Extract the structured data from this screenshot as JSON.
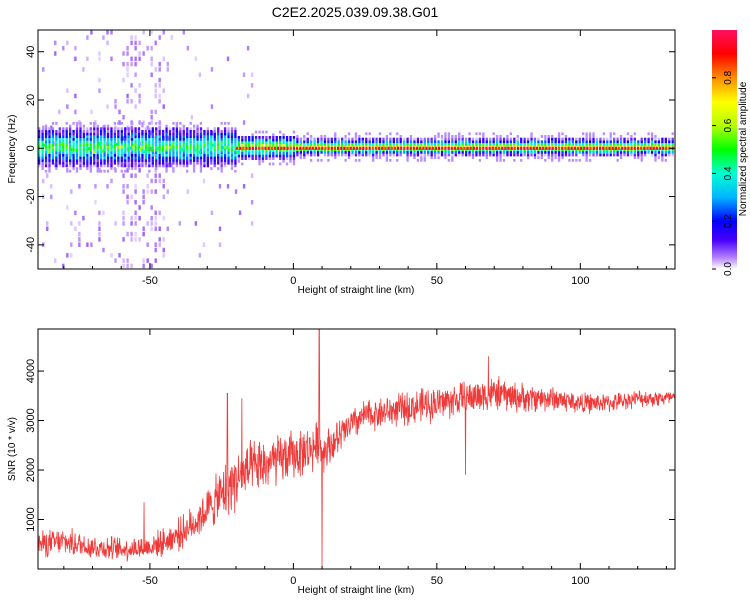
{
  "title": "C2E2.2025.039.09.38.G01",
  "chart_data": [
    {
      "type": "heatmap",
      "xlabel": "Height of straight line (km)",
      "ylabel": "Frequency (Hz)",
      "xlim": [
        -89,
        133
      ],
      "ylim": [
        -50,
        49
      ],
      "xticks": [
        -50,
        0,
        50,
        100
      ],
      "yticks": [
        -40,
        -20,
        0,
        20,
        40
      ],
      "colorbar": {
        "label": "Normalized spectral amplitude",
        "range": [
          0,
          1
        ],
        "ticks": [
          0.0,
          0.2,
          0.4,
          0.6,
          0.8
        ],
        "colors": [
          "#ffffff",
          "#b07cff",
          "#4b00ff",
          "#0000ff",
          "#00b4ff",
          "#00ffd0",
          "#00ff00",
          "#b4ff00",
          "#ffff00",
          "#ff8c00",
          "#ff0000",
          "#ff1060"
        ]
      },
      "ridge_frequency": 0
    },
    {
      "type": "line",
      "xlabel": "Height of straight line (km)",
      "ylabel": "SNR (10 * v/v)",
      "xlim": [
        -89,
        133
      ],
      "ylim": [
        0,
        4850
      ],
      "xticks": [
        -50,
        0,
        50,
        100
      ],
      "yticks": [
        1000,
        2000,
        3000,
        4000
      ],
      "series": [
        {
          "color": "#ef3a3a",
          "x": [
            -89,
            -80,
            -70,
            -60,
            -50,
            -45,
            -40,
            -35,
            -30,
            -25,
            -22,
            -20,
            -15,
            -10,
            -5,
            0,
            5,
            8,
            10,
            15,
            20,
            25,
            30,
            35,
            40,
            45,
            50,
            55,
            60,
            65,
            70,
            75,
            80,
            85,
            90,
            100,
            110,
            120,
            125,
            133
          ],
          "y": [
            500,
            550,
            450,
            400,
            450,
            550,
            700,
            900,
            1200,
            1500,
            1700,
            1800,
            2000,
            2100,
            2200,
            2300,
            2400,
            2500,
            2400,
            2600,
            2900,
            3100,
            3150,
            3200,
            3250,
            3300,
            3350,
            3400,
            3450,
            3500,
            3550,
            3500,
            3450,
            3450,
            3450,
            3350,
            3350,
            3450,
            3450,
            3450
          ],
          "noise": [
            320,
            320,
            300,
            280,
            300,
            320,
            380,
            420,
            500,
            650,
            700,
            700,
            650,
            650,
            600,
            600,
            550,
            550,
            500,
            450,
            400,
            380,
            380,
            380,
            400,
            420,
            420,
            420,
            420,
            420,
            400,
            380,
            350,
            320,
            300,
            250,
            220,
            200,
            200,
            200
          ],
          "spikes": [
            {
              "x": -52,
              "y": 1350
            },
            {
              "x": -23,
              "y": 3550
            },
            {
              "x": -18,
              "y": 3450
            },
            {
              "x": 9,
              "y": 4850
            },
            {
              "x": 10,
              "y": 60
            },
            {
              "x": 68,
              "y": 4300
            },
            {
              "x": 60,
              "y": 1900
            }
          ]
        }
      ]
    }
  ]
}
